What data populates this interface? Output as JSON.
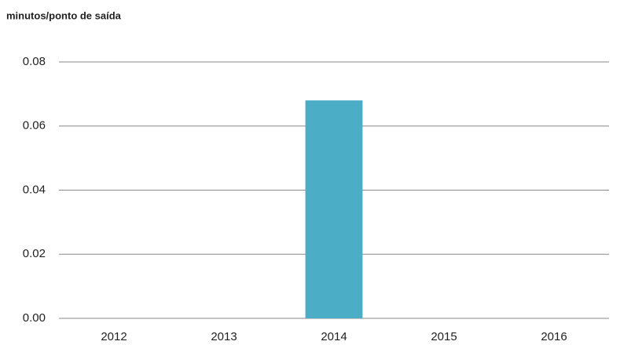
{
  "chart_data": {
    "type": "bar",
    "ylabel": "minutos/ponto de saída",
    "categories": [
      "2012",
      "2013",
      "2014",
      "2015",
      "2016"
    ],
    "values": [
      0,
      0,
      0.068,
      0,
      0
    ],
    "color": "#4badc6",
    "ylim": [
      0,
      0.08
    ],
    "yticks": [
      {
        "value": 0,
        "label": "0.00"
      },
      0.02,
      0.04,
      0.06,
      0.08
    ],
    "grid": true
  }
}
